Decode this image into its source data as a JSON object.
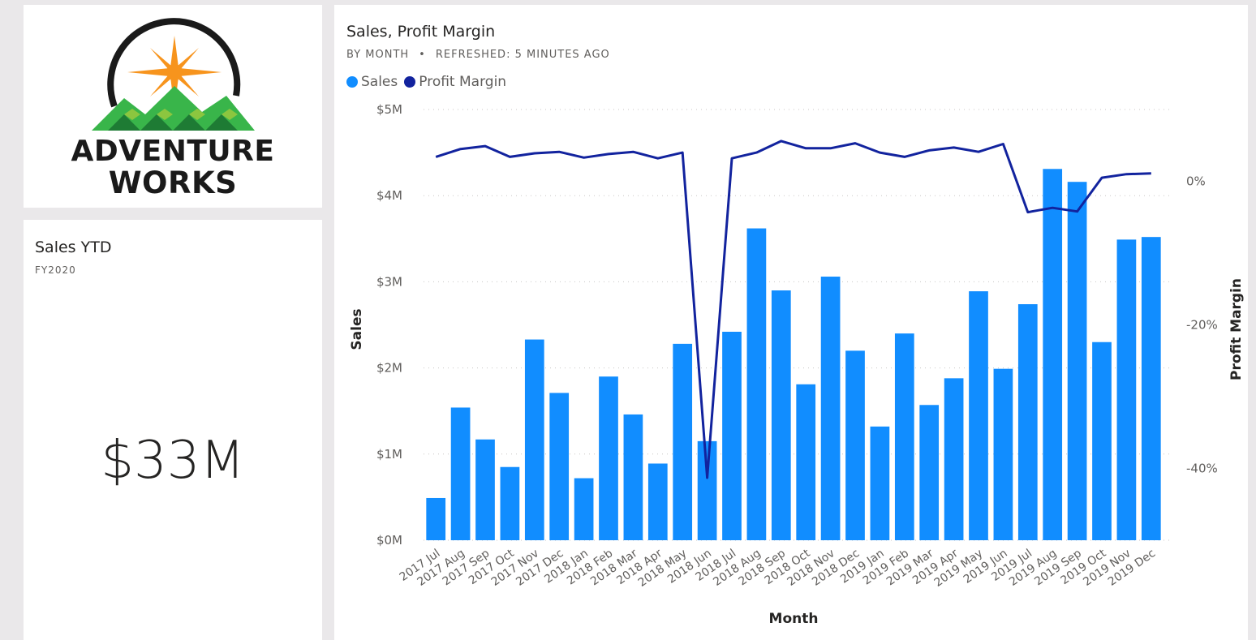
{
  "logo": {
    "line1": "Adventure",
    "line2": "Works"
  },
  "kpi": {
    "title": "Sales YTD",
    "subtitle": "FY2020",
    "value": "$33M"
  },
  "chart": {
    "title": "Sales, Profit Margin",
    "subtitle_left": "BY MONTH",
    "subtitle_sep": "•",
    "subtitle_right": "REFRESHED: 5 MINUTES AGO",
    "legend": [
      {
        "label": "Sales",
        "color": "#118dff"
      },
      {
        "label": "Profit Margin",
        "color": "#12239e"
      }
    ]
  },
  "chart_data": {
    "type": "bar",
    "xlabel": "Month",
    "ylabel": "Sales",
    "y2label": "Profit Margin",
    "ylim": [
      0,
      5000000
    ],
    "y2lim": [
      -50,
      10
    ],
    "yticks": [
      "$0M",
      "$1M",
      "$2M",
      "$3M",
      "$4M",
      "$5M"
    ],
    "y2ticks": [
      "0%",
      "-20%",
      "-40%"
    ],
    "grid": true,
    "legend_position": "top-left",
    "categories": [
      "2017 Jul",
      "2017 Aug",
      "2017 Sep",
      "2017 Oct",
      "2017 Nov",
      "2017 Dec",
      "2018 Jan",
      "2018 Feb",
      "2018 Mar",
      "2018 Apr",
      "2018 May",
      "2018 Jun",
      "2018 Jul",
      "2018 Aug",
      "2018 Sep",
      "2018 Oct",
      "2018 Nov",
      "2018 Dec",
      "2019 Jan",
      "2019 Feb",
      "2019 Mar",
      "2019 Apr",
      "2019 May",
      "2019 Jun",
      "2019 Jul",
      "2019 Aug",
      "2019 Sep",
      "2019 Oct",
      "2019 Nov",
      "2019 Dec"
    ],
    "series": [
      {
        "name": "Sales",
        "kind": "bar",
        "axis": "left",
        "color": "#118dff",
        "values": [
          490000,
          1540000,
          1170000,
          850000,
          2330000,
          1710000,
          720000,
          1900000,
          1460000,
          890000,
          2280000,
          1150000,
          2420000,
          3620000,
          2900000,
          1810000,
          3060000,
          2200000,
          1320000,
          2400000,
          1570000,
          1880000,
          2890000,
          1990000,
          2740000,
          4310000,
          4160000,
          2300000,
          3490000,
          3520000
        ]
      },
      {
        "name": "Profit Margin",
        "kind": "line",
        "axis": "right",
        "color": "#12239e",
        "values": [
          3.4,
          4.5,
          4.9,
          3.4,
          3.9,
          4.1,
          3.3,
          3.8,
          4.1,
          3.2,
          4.0,
          -41.3,
          3.2,
          4.0,
          5.6,
          4.6,
          4.6,
          5.3,
          4.0,
          3.4,
          4.3,
          4.7,
          4.1,
          5.2,
          -4.3,
          -3.7,
          -4.2,
          0.5,
          1.0,
          1.1
        ]
      }
    ]
  }
}
